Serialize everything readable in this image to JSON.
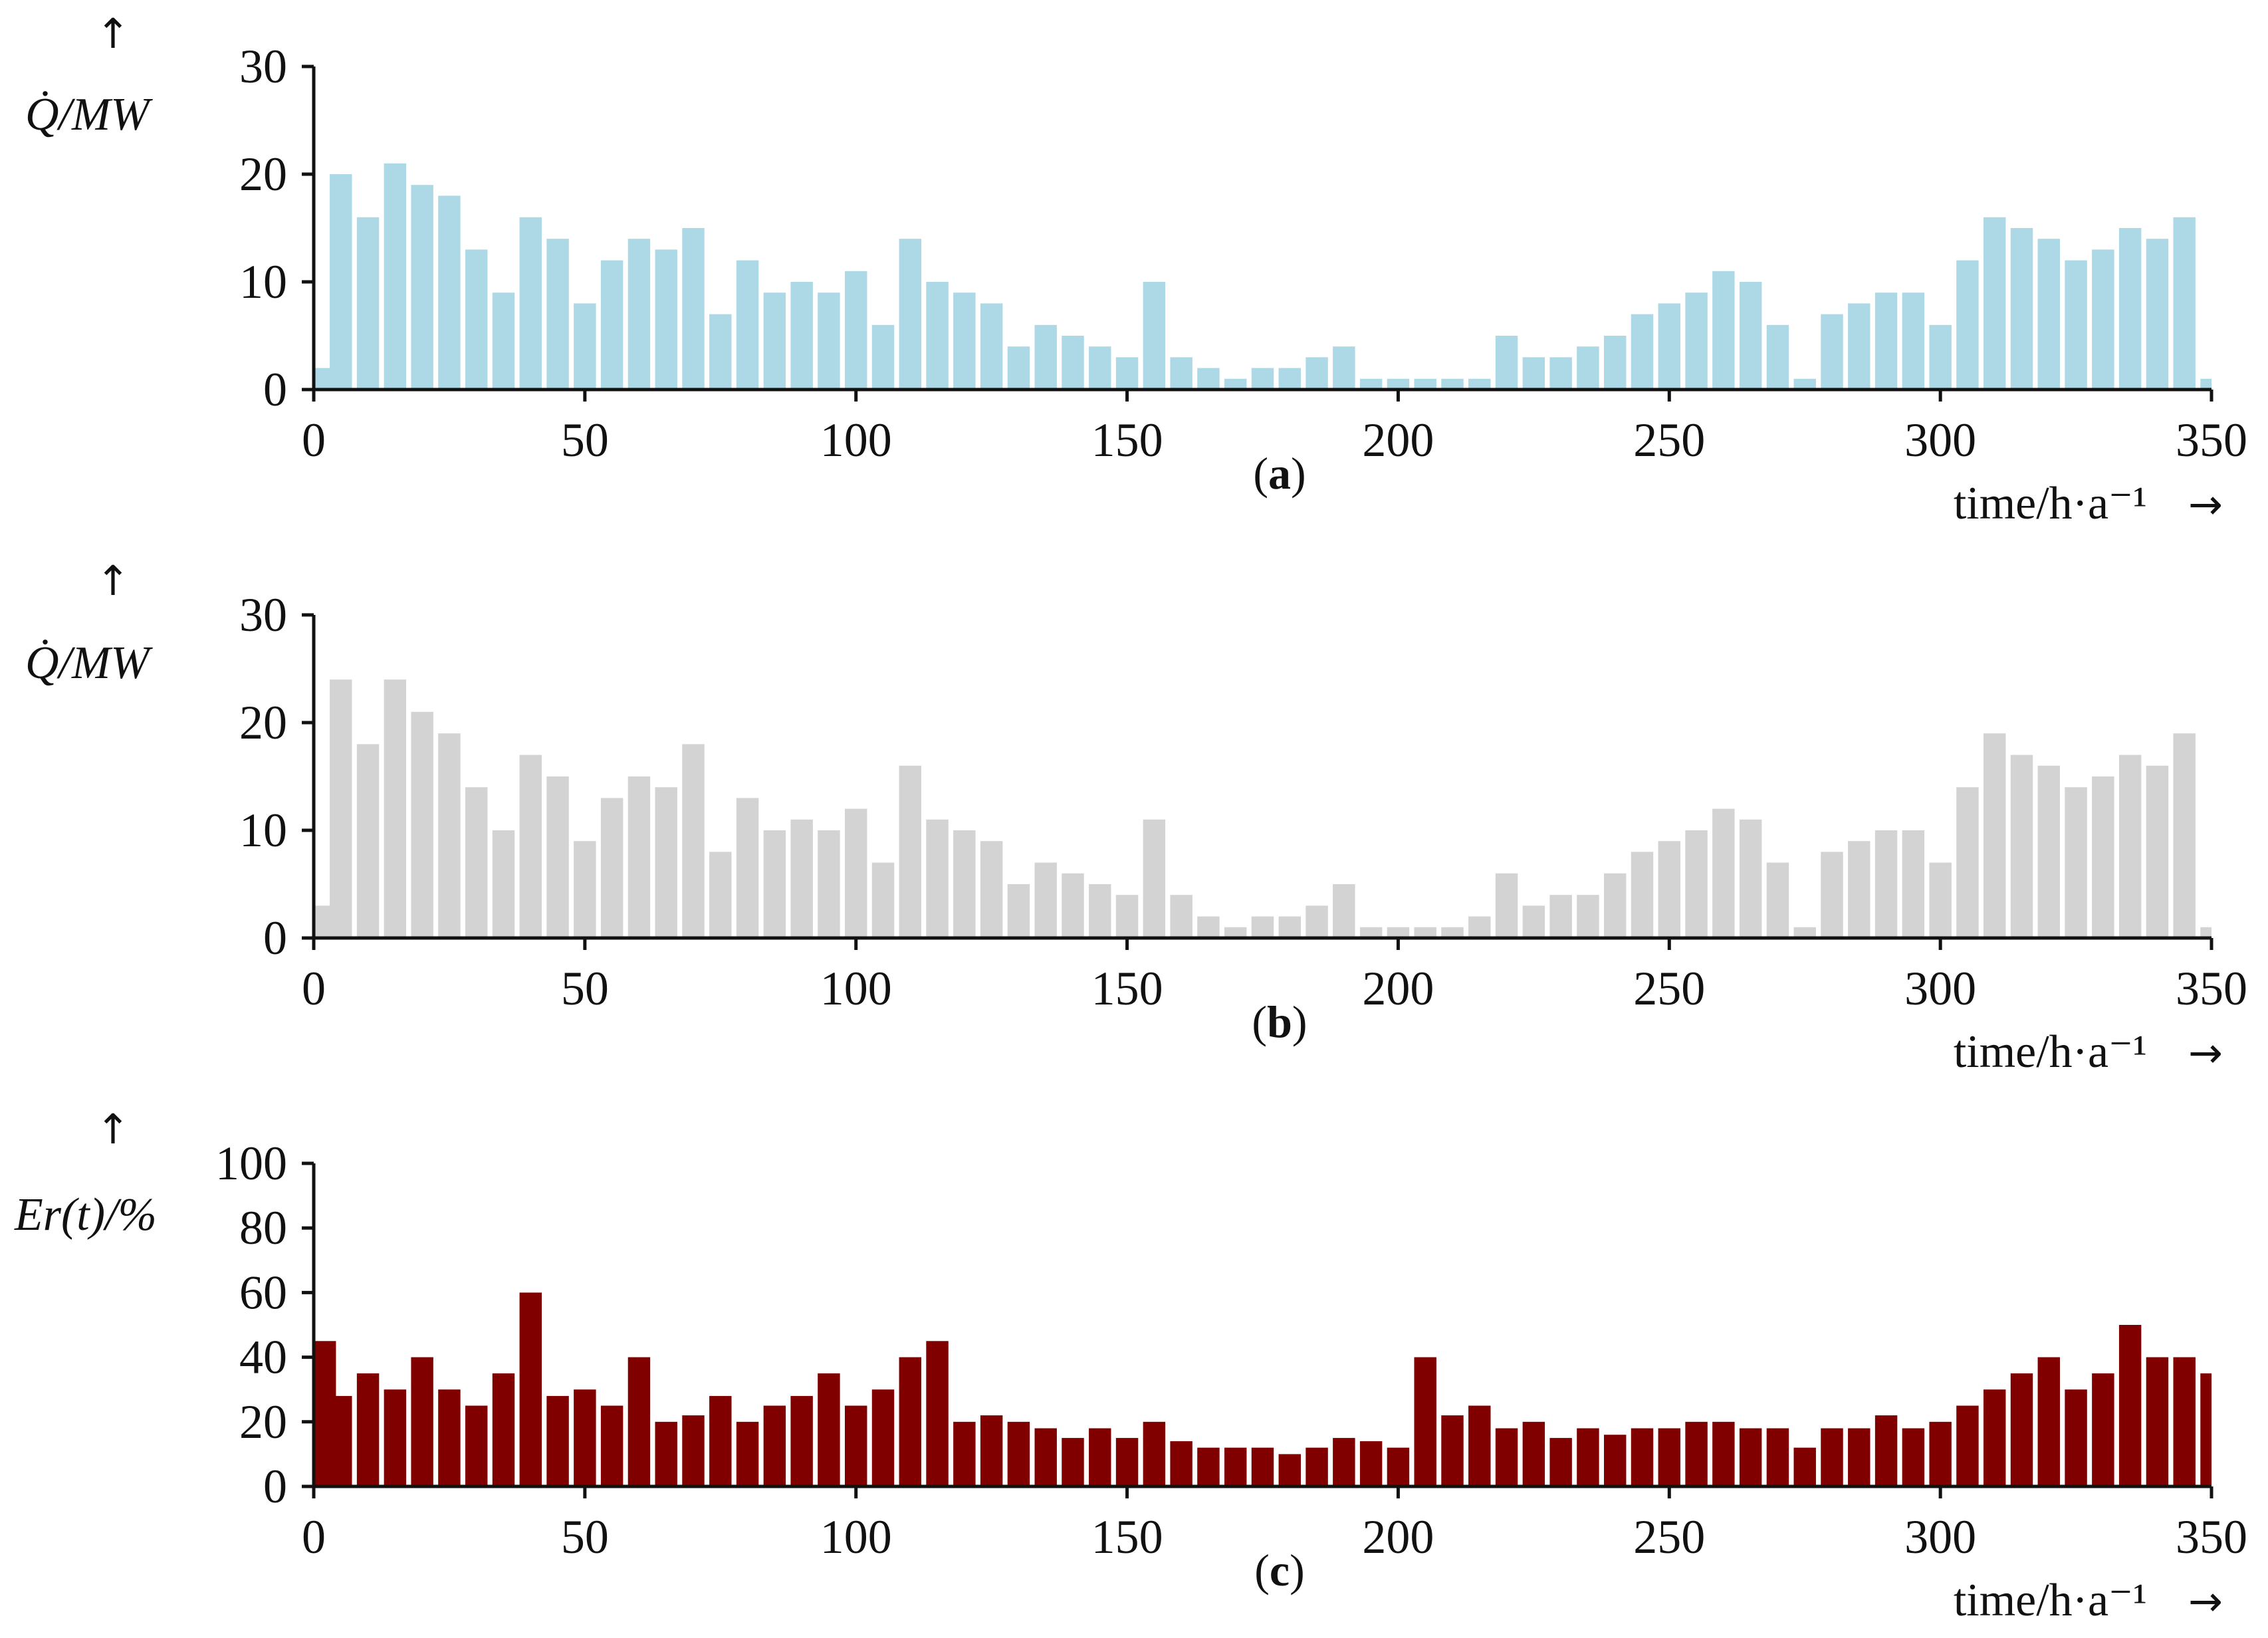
{
  "chart_data": [
    {
      "type": "bar",
      "panel_label": "a",
      "ylabel": "Q̇/MW",
      "xlabel": "time/h·a⁻¹",
      "xlim": [
        0,
        350
      ],
      "ylim": [
        0,
        30
      ],
      "xticks": [
        "0",
        "50",
        "100",
        "150",
        "200",
        "250",
        "300",
        "350"
      ],
      "yticks": [
        "0",
        "10",
        "20",
        "30"
      ],
      "color": "#add8e6",
      "x": [
        0,
        5,
        10,
        15,
        20,
        25,
        30,
        35,
        40,
        45,
        50,
        55,
        60,
        65,
        70,
        75,
        80,
        85,
        90,
        95,
        100,
        105,
        110,
        115,
        120,
        125,
        130,
        135,
        140,
        145,
        150,
        155,
        160,
        165,
        170,
        175,
        180,
        185,
        190,
        195,
        200,
        205,
        210,
        215,
        220,
        225,
        230,
        235,
        240,
        245,
        250,
        255,
        260,
        265,
        270,
        275,
        280,
        285,
        290,
        295,
        300,
        305,
        310,
        315,
        320,
        325,
        330,
        335,
        340,
        345,
        350
      ],
      "values": [
        2,
        20,
        16,
        21,
        19,
        18,
        13,
        9,
        16,
        14,
        8,
        12,
        14,
        13,
        15,
        7,
        12,
        9,
        10,
        9,
        11,
        6,
        14,
        10,
        9,
        8,
        4,
        6,
        5,
        4,
        3,
        10,
        3,
        2,
        1,
        2,
        2,
        3,
        4,
        1,
        1,
        1,
        1,
        1,
        5,
        3,
        3,
        4,
        5,
        7,
        8,
        9,
        11,
        10,
        6,
        1,
        7,
        8,
        9,
        9,
        6,
        12,
        16,
        15,
        14,
        12,
        13,
        15,
        14,
        16,
        1
      ]
    },
    {
      "type": "bar",
      "panel_label": "b",
      "ylabel": "Q̇/MW",
      "xlabel": "time/h·a⁻¹",
      "xlim": [
        0,
        350
      ],
      "ylim": [
        0,
        30
      ],
      "xticks": [
        "0",
        "50",
        "100",
        "150",
        "200",
        "250",
        "300",
        "350"
      ],
      "yticks": [
        "0",
        "10",
        "20",
        "30"
      ],
      "color": "#d3d3d3",
      "x": [
        0,
        5,
        10,
        15,
        20,
        25,
        30,
        35,
        40,
        45,
        50,
        55,
        60,
        65,
        70,
        75,
        80,
        85,
        90,
        95,
        100,
        105,
        110,
        115,
        120,
        125,
        130,
        135,
        140,
        145,
        150,
        155,
        160,
        165,
        170,
        175,
        180,
        185,
        190,
        195,
        200,
        205,
        210,
        215,
        220,
        225,
        230,
        235,
        240,
        245,
        250,
        255,
        260,
        265,
        270,
        275,
        280,
        285,
        290,
        295,
        300,
        305,
        310,
        315,
        320,
        325,
        330,
        335,
        340,
        345,
        350
      ],
      "values": [
        3,
        24,
        18,
        24,
        21,
        19,
        14,
        10,
        17,
        15,
        9,
        13,
        15,
        14,
        18,
        8,
        13,
        10,
        11,
        10,
        12,
        7,
        16,
        11,
        10,
        9,
        5,
        7,
        6,
        5,
        4,
        11,
        4,
        2,
        1,
        2,
        2,
        3,
        5,
        1,
        1,
        1,
        1,
        2,
        6,
        3,
        4,
        4,
        6,
        8,
        9,
        10,
        12,
        11,
        7,
        1,
        8,
        9,
        10,
        10,
        7,
        14,
        19,
        17,
        16,
        14,
        15,
        17,
        16,
        19,
        1
      ]
    },
    {
      "type": "bar",
      "panel_label": "c",
      "ylabel": "Er(t)/%",
      "xlabel": "time/h·a⁻¹",
      "xlim": [
        0,
        350
      ],
      "ylim": [
        0,
        100
      ],
      "xticks": [
        "0",
        "50",
        "100",
        "150",
        "200",
        "250",
        "300",
        "350"
      ],
      "yticks": [
        "0",
        "20",
        "40",
        "60",
        "80",
        "100"
      ],
      "color": "#800000",
      "x": [
        0,
        5,
        10,
        15,
        20,
        25,
        30,
        35,
        40,
        45,
        50,
        55,
        60,
        65,
        70,
        75,
        80,
        85,
        90,
        95,
        100,
        105,
        110,
        115,
        120,
        125,
        130,
        135,
        140,
        145,
        150,
        155,
        160,
        165,
        170,
        175,
        180,
        185,
        190,
        195,
        200,
        205,
        210,
        215,
        220,
        225,
        230,
        235,
        240,
        245,
        250,
        255,
        260,
        265,
        270,
        275,
        280,
        285,
        290,
        295,
        300,
        305,
        310,
        315,
        320,
        325,
        330,
        335,
        340,
        345,
        350
      ],
      "values": [
        45,
        28,
        35,
        30,
        40,
        30,
        25,
        35,
        60,
        28,
        30,
        25,
        40,
        20,
        22,
        28,
        20,
        25,
        28,
        35,
        25,
        30,
        40,
        45,
        20,
        22,
        20,
        18,
        15,
        18,
        15,
        20,
        14,
        12,
        12,
        12,
        10,
        12,
        15,
        14,
        12,
        40,
        22,
        25,
        18,
        20,
        15,
        18,
        16,
        18,
        18,
        20,
        20,
        18,
        18,
        12,
        18,
        18,
        22,
        18,
        20,
        25,
        30,
        35,
        40,
        30,
        35,
        50,
        40,
        40,
        35
      ]
    }
  ]
}
